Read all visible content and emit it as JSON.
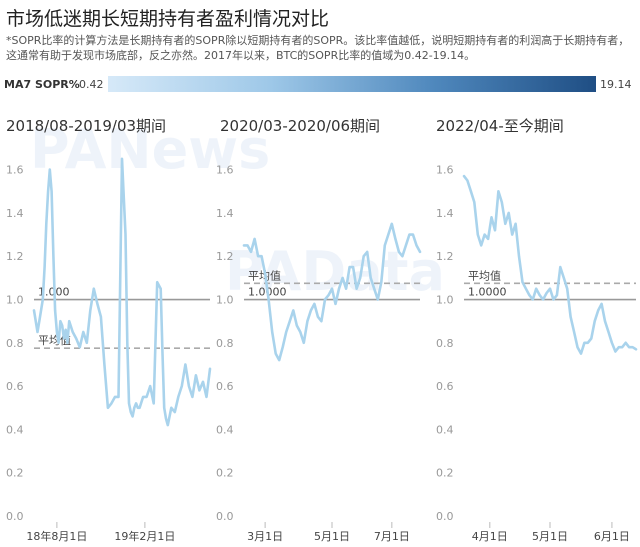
{
  "header": {
    "title": "市场低迷期长短期持有者盈利情况对比",
    "subtitle": "*SOPR比率的计算方法是长期持有者的SOPR除以短期持有者的SOPR。该比率值越低，说明短期持有者的利润高于长期持有者，这通常有助于发现市场底部，反之亦然。2017年以来，BTC的SOPR比率的值域为0.42-19.14。"
  },
  "legend": {
    "label": "MA7 SOPR%",
    "min": "0.42",
    "max": "19.14",
    "colors": [
      "#d6e9f8",
      "#9ec8e8",
      "#4f88bd",
      "#1f4e84"
    ]
  },
  "watermarks": [
    "PANews",
    "PAData"
  ],
  "chart_data": [
    {
      "type": "line",
      "title": "2018/08-2019/03期间",
      "y_ticks": [
        "0.0",
        "0.2",
        "0.4",
        "0.6",
        "0.8",
        "1.0",
        "1.2",
        "1.4",
        "1.6"
      ],
      "ylim": [
        0,
        1.7
      ],
      "x_ticks": [
        {
          "x": 0.13,
          "label": "18年8月1日"
        },
        {
          "x": 0.63,
          "label": "19年2月1日"
        }
      ],
      "reference_lines": [
        {
          "value": 1.0,
          "label": "1.000",
          "style": "solid"
        },
        {
          "value": 0.775,
          "label": "平均值",
          "style": "dashed"
        }
      ],
      "series": [
        {
          "color": "#a9d3ec",
          "x": [
            0.0,
            0.02,
            0.03,
            0.05,
            0.06,
            0.07,
            0.08,
            0.09,
            0.1,
            0.11,
            0.12,
            0.13,
            0.14,
            0.15,
            0.16,
            0.17,
            0.18,
            0.19,
            0.2,
            0.22,
            0.24,
            0.26,
            0.28,
            0.3,
            0.32,
            0.34,
            0.36,
            0.38,
            0.4,
            0.42,
            0.44,
            0.46,
            0.48,
            0.5,
            0.52,
            0.53,
            0.54,
            0.55,
            0.56,
            0.57,
            0.58,
            0.59,
            0.6,
            0.62,
            0.64,
            0.66,
            0.68,
            0.7,
            0.72,
            0.73,
            0.74,
            0.75,
            0.76,
            0.78,
            0.8,
            0.82,
            0.84,
            0.86,
            0.88,
            0.9,
            0.92,
            0.94,
            0.96,
            0.98,
            1.0
          ],
          "y": [
            0.95,
            0.85,
            0.9,
            1.0,
            1.15,
            1.35,
            1.5,
            1.6,
            1.5,
            1.2,
            0.95,
            0.85,
            0.8,
            0.9,
            0.88,
            0.82,
            0.86,
            0.8,
            0.9,
            0.85,
            0.82,
            0.78,
            0.85,
            0.8,
            0.95,
            1.05,
            0.98,
            0.92,
            0.7,
            0.5,
            0.52,
            0.55,
            0.55,
            1.65,
            1.3,
            0.8,
            0.52,
            0.48,
            0.46,
            0.5,
            0.52,
            0.5,
            0.5,
            0.55,
            0.55,
            0.6,
            0.52,
            1.08,
            1.05,
            0.75,
            0.5,
            0.45,
            0.42,
            0.5,
            0.48,
            0.55,
            0.6,
            0.7,
            0.6,
            0.55,
            0.65,
            0.58,
            0.62,
            0.55,
            0.68
          ]
        }
      ]
    },
    {
      "type": "line",
      "title": "2020/03-2020/06期间",
      "y_ticks": [
        "0.0",
        "0.2",
        "0.4",
        "0.6",
        "0.8",
        "1.0",
        "1.2",
        "1.4",
        "1.6"
      ],
      "ylim": [
        0,
        1.7
      ],
      "x_ticks": [
        {
          "x": 0.12,
          "label": "3月1日"
        },
        {
          "x": 0.5,
          "label": "5月1日"
        },
        {
          "x": 0.84,
          "label": "7月1日"
        }
      ],
      "reference_lines": [
        {
          "value": 1.0,
          "label": "1.0000",
          "style": "solid"
        },
        {
          "value": 1.075,
          "label": "平均值",
          "style": "dashed"
        }
      ],
      "series": [
        {
          "color": "#a9d3ec",
          "x": [
            0.0,
            0.02,
            0.04,
            0.06,
            0.08,
            0.1,
            0.12,
            0.14,
            0.16,
            0.18,
            0.2,
            0.22,
            0.24,
            0.26,
            0.28,
            0.3,
            0.32,
            0.34,
            0.36,
            0.38,
            0.4,
            0.42,
            0.44,
            0.46,
            0.48,
            0.5,
            0.52,
            0.54,
            0.56,
            0.58,
            0.6,
            0.62,
            0.64,
            0.66,
            0.68,
            0.7,
            0.72,
            0.74,
            0.76,
            0.78,
            0.8,
            0.82,
            0.84,
            0.86,
            0.88,
            0.9,
            0.92,
            0.94,
            0.96,
            0.98,
            1.0
          ],
          "y": [
            1.25,
            1.25,
            1.22,
            1.28,
            1.2,
            1.2,
            1.12,
            1.0,
            0.85,
            0.75,
            0.72,
            0.78,
            0.85,
            0.9,
            0.95,
            0.88,
            0.85,
            0.8,
            0.9,
            0.95,
            0.98,
            0.92,
            0.9,
            1.0,
            1.02,
            1.05,
            0.98,
            1.05,
            1.1,
            1.05,
            1.15,
            1.15,
            1.05,
            1.1,
            1.2,
            1.22,
            1.1,
            1.05,
            1.0,
            1.08,
            1.25,
            1.3,
            1.35,
            1.28,
            1.22,
            1.2,
            1.25,
            1.3,
            1.3,
            1.25,
            1.22
          ]
        }
      ]
    },
    {
      "type": "line",
      "title": "2022/04-至今期间",
      "y_ticks": [
        "0.0",
        "0.2",
        "0.4",
        "0.6",
        "0.8",
        "1.0",
        "1.2",
        "1.4",
        "1.6"
      ],
      "ylim": [
        0,
        1.7
      ],
      "x_ticks": [
        {
          "x": 0.15,
          "label": "4月1日"
        },
        {
          "x": 0.5,
          "label": "5月1日"
        },
        {
          "x": 0.86,
          "label": "6月1日"
        }
      ],
      "reference_lines": [
        {
          "value": 1.0,
          "label": "1.0000",
          "style": "solid"
        },
        {
          "value": 1.075,
          "label": "平均值",
          "style": "dashed"
        }
      ],
      "series": [
        {
          "color": "#a9d3ec",
          "x": [
            0.0,
            0.02,
            0.04,
            0.06,
            0.08,
            0.1,
            0.12,
            0.14,
            0.16,
            0.18,
            0.2,
            0.22,
            0.24,
            0.26,
            0.28,
            0.3,
            0.32,
            0.34,
            0.36,
            0.38,
            0.4,
            0.42,
            0.44,
            0.46,
            0.48,
            0.5,
            0.52,
            0.54,
            0.56,
            0.58,
            0.6,
            0.62,
            0.64,
            0.66,
            0.68,
            0.7,
            0.72,
            0.74,
            0.76,
            0.78,
            0.8,
            0.82,
            0.84,
            0.86,
            0.88,
            0.9,
            0.92,
            0.94,
            0.96,
            0.98,
            1.0
          ],
          "y": [
            1.57,
            1.55,
            1.5,
            1.45,
            1.3,
            1.25,
            1.3,
            1.28,
            1.38,
            1.32,
            1.5,
            1.45,
            1.35,
            1.4,
            1.3,
            1.35,
            1.2,
            1.08,
            1.05,
            1.02,
            1.0,
            1.05,
            1.02,
            1.0,
            1.03,
            1.05,
            1.0,
            1.02,
            1.15,
            1.1,
            1.05,
            0.92,
            0.85,
            0.78,
            0.75,
            0.8,
            0.8,
            0.82,
            0.9,
            0.95,
            0.98,
            0.9,
            0.85,
            0.8,
            0.76,
            0.78,
            0.78,
            0.8,
            0.78,
            0.78,
            0.77
          ]
        }
      ]
    }
  ]
}
